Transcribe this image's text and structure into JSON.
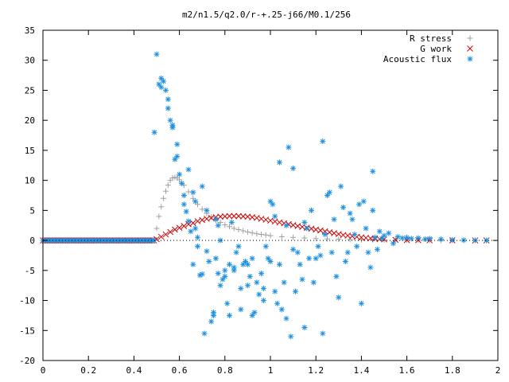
{
  "chart_data": {
    "type": "scatter",
    "title": "m2/n1.5/q2.0/r-+.25-j66/M0.1/256",
    "xlabel": "",
    "ylabel": "",
    "xlim": [
      0,
      2
    ],
    "ylim": [
      -20,
      35
    ],
    "xticks": [
      0,
      0.2,
      0.4,
      0.6,
      0.8,
      1,
      1.2,
      1.4,
      1.6,
      1.8,
      2
    ],
    "xtick_labels": [
      "0",
      "0.2",
      "0.4",
      "0.6",
      "0.8",
      "1",
      "1.2",
      "1.4",
      "1.6",
      "1.8",
      "2"
    ],
    "yticks": [
      -20,
      -15,
      -10,
      -5,
      0,
      5,
      10,
      15,
      20,
      25,
      30,
      35
    ],
    "ytick_labels": [
      "-20",
      "-15",
      "-10",
      "-5",
      "0",
      "5",
      "10",
      "15",
      "20",
      "25",
      "30",
      "35"
    ],
    "grid": false,
    "legend_position": "top-right",
    "series": [
      {
        "name": "R stress",
        "marker": "plus",
        "color": "#a0a0a0",
        "points": [
          [
            0.5,
            2.0
          ],
          [
            0.51,
            4.0
          ],
          [
            0.52,
            5.6
          ],
          [
            0.53,
            7.0
          ],
          [
            0.54,
            8.2
          ],
          [
            0.55,
            9.2
          ],
          [
            0.56,
            10.0
          ],
          [
            0.57,
            10.4
          ],
          [
            0.58,
            10.5
          ],
          [
            0.59,
            10.4
          ],
          [
            0.6,
            10.1
          ],
          [
            0.62,
            9.2
          ],
          [
            0.64,
            8.1
          ],
          [
            0.66,
            7.0
          ],
          [
            0.68,
            6.0
          ],
          [
            0.7,
            5.2
          ],
          [
            0.72,
            4.5
          ],
          [
            0.74,
            3.9
          ],
          [
            0.76,
            3.4
          ],
          [
            0.78,
            3.0
          ],
          [
            0.8,
            2.6
          ],
          [
            0.82,
            2.3
          ],
          [
            0.84,
            2.0
          ],
          [
            0.86,
            1.8
          ],
          [
            0.88,
            1.6
          ],
          [
            0.9,
            1.4
          ],
          [
            0.92,
            1.25
          ],
          [
            0.94,
            1.1
          ],
          [
            0.96,
            1.0
          ],
          [
            0.98,
            0.9
          ],
          [
            1.0,
            0.8
          ],
          [
            1.05,
            0.62
          ],
          [
            1.1,
            0.5
          ],
          [
            1.15,
            0.4
          ],
          [
            1.2,
            0.32
          ],
          [
            1.25,
            0.26
          ],
          [
            1.3,
            0.2
          ],
          [
            1.35,
            0.16
          ],
          [
            1.4,
            0.12
          ],
          [
            1.45,
            0.1
          ],
          [
            1.5,
            0.08
          ],
          [
            1.55,
            0.06
          ],
          [
            1.6,
            0.05
          ],
          [
            1.65,
            0.04
          ],
          [
            1.7,
            0.03
          ],
          [
            1.75,
            0.02
          ],
          [
            1.8,
            0.02
          ],
          [
            1.85,
            0.01
          ],
          [
            1.9,
            0.01
          ],
          [
            1.95,
            0.0
          ]
        ]
      },
      {
        "name": "G work",
        "marker": "cross",
        "color": "#cc0000",
        "points": [
          [
            0.5,
            0.2
          ],
          [
            0.52,
            0.6
          ],
          [
            0.54,
            1.0
          ],
          [
            0.56,
            1.4
          ],
          [
            0.58,
            1.8
          ],
          [
            0.6,
            2.1
          ],
          [
            0.62,
            2.4
          ],
          [
            0.64,
            2.7
          ],
          [
            0.66,
            2.9
          ],
          [
            0.68,
            3.2
          ],
          [
            0.7,
            3.4
          ],
          [
            0.72,
            3.6
          ],
          [
            0.74,
            3.75
          ],
          [
            0.76,
            3.85
          ],
          [
            0.78,
            3.95
          ],
          [
            0.8,
            4.0
          ],
          [
            0.82,
            4.05
          ],
          [
            0.84,
            4.05
          ],
          [
            0.86,
            4.05
          ],
          [
            0.88,
            4.0
          ],
          [
            0.9,
            3.95
          ],
          [
            0.92,
            3.85
          ],
          [
            0.94,
            3.75
          ],
          [
            0.96,
            3.6
          ],
          [
            0.98,
            3.45
          ],
          [
            1.0,
            3.3
          ],
          [
            1.02,
            3.15
          ],
          [
            1.04,
            3.0
          ],
          [
            1.06,
            2.85
          ],
          [
            1.08,
            2.7
          ],
          [
            1.1,
            2.55
          ],
          [
            1.12,
            2.4
          ],
          [
            1.14,
            2.25
          ],
          [
            1.16,
            2.1
          ],
          [
            1.18,
            1.95
          ],
          [
            1.2,
            1.8
          ],
          [
            1.22,
            1.65
          ],
          [
            1.24,
            1.5
          ],
          [
            1.26,
            1.35
          ],
          [
            1.28,
            1.2
          ],
          [
            1.3,
            1.05
          ],
          [
            1.32,
            0.9
          ],
          [
            1.34,
            0.8
          ],
          [
            1.36,
            0.7
          ],
          [
            1.38,
            0.6
          ],
          [
            1.4,
            0.5
          ],
          [
            1.42,
            0.42
          ],
          [
            1.44,
            0.35
          ],
          [
            1.46,
            0.28
          ],
          [
            1.48,
            0.22
          ],
          [
            1.5,
            0.17
          ],
          [
            1.55,
            0.1
          ],
          [
            1.6,
            0.06
          ],
          [
            1.65,
            0.04
          ],
          [
            1.7,
            0.02
          ],
          [
            1.8,
            0.01
          ],
          [
            1.9,
            0.0
          ],
          [
            1.95,
            0.0
          ]
        ]
      },
      {
        "name": "Acoustic flux",
        "marker": "star",
        "color": "#1e90e0",
        "points": [
          [
            0.49,
            18.0
          ],
          [
            0.5,
            31.0
          ],
          [
            0.51,
            26.0
          ],
          [
            0.52,
            25.5
          ],
          [
            0.52,
            27.0
          ],
          [
            0.53,
            26.5
          ],
          [
            0.54,
            25.0
          ],
          [
            0.55,
            23.5
          ],
          [
            0.55,
            22.0
          ],
          [
            0.56,
            20.0
          ],
          [
            0.57,
            18.8
          ],
          [
            0.57,
            19.2
          ],
          [
            0.58,
            13.5
          ],
          [
            0.59,
            14.0
          ],
          [
            0.59,
            16.0
          ],
          [
            0.6,
            11.0
          ],
          [
            0.61,
            9.5
          ],
          [
            0.62,
            7.5
          ],
          [
            0.62,
            6.0
          ],
          [
            0.63,
            4.8
          ],
          [
            0.64,
            11.8
          ],
          [
            0.64,
            3.2
          ],
          [
            0.65,
            1.5
          ],
          [
            0.66,
            -4.0
          ],
          [
            0.66,
            8.0
          ],
          [
            0.67,
            6.5
          ],
          [
            0.67,
            2.0
          ],
          [
            0.68,
            0.5
          ],
          [
            0.68,
            -1.0
          ],
          [
            0.69,
            -5.8
          ],
          [
            0.7,
            -5.6
          ],
          [
            0.7,
            9.0
          ],
          [
            0.71,
            -15.5
          ],
          [
            0.72,
            -1.8
          ],
          [
            0.72,
            5.0
          ],
          [
            0.73,
            -3.5
          ],
          [
            0.74,
            -13.5
          ],
          [
            0.75,
            -12.5
          ],
          [
            0.75,
            -12.0
          ],
          [
            0.76,
            3.5
          ],
          [
            0.76,
            -3.0
          ],
          [
            0.77,
            2.5
          ],
          [
            0.77,
            -5.5
          ],
          [
            0.78,
            -7.5
          ],
          [
            0.78,
            0.0
          ],
          [
            0.79,
            -6.5
          ],
          [
            0.8,
            -5.0
          ],
          [
            0.8,
            -6.0
          ],
          [
            0.81,
            -10.5
          ],
          [
            0.82,
            -4.0
          ],
          [
            0.82,
            -12.5
          ],
          [
            0.83,
            3.0
          ],
          [
            0.84,
            -4.5
          ],
          [
            0.84,
            -5.0
          ],
          [
            0.85,
            -2.0
          ],
          [
            0.86,
            -1.0
          ],
          [
            0.87,
            -8.0
          ],
          [
            0.87,
            -11.5
          ],
          [
            0.88,
            -4.0
          ],
          [
            0.89,
            -3.5
          ],
          [
            0.9,
            -4.0
          ],
          [
            0.9,
            -7.5
          ],
          [
            0.91,
            -6.0
          ],
          [
            0.92,
            -12.5
          ],
          [
            0.92,
            -3.0
          ],
          [
            0.93,
            -12.0
          ],
          [
            0.94,
            -7.0
          ],
          [
            0.95,
            -9.0
          ],
          [
            0.96,
            -5.5
          ],
          [
            0.97,
            -10.0
          ],
          [
            0.97,
            -8.0
          ],
          [
            0.98,
            -1.0
          ],
          [
            0.99,
            -3.0
          ],
          [
            1.0,
            6.5
          ],
          [
            1.0,
            -3.5
          ],
          [
            1.01,
            6.0
          ],
          [
            1.02,
            4.0
          ],
          [
            1.02,
            -8.5
          ],
          [
            1.03,
            -10.5
          ],
          [
            1.04,
            13.0
          ],
          [
            1.04,
            -4.0
          ],
          [
            1.05,
            -11.5
          ],
          [
            1.06,
            -7.0
          ],
          [
            1.07,
            -13.0
          ],
          [
            1.07,
            2.5
          ],
          [
            1.08,
            15.5
          ],
          [
            1.09,
            -16.0
          ],
          [
            1.1,
            12.0
          ],
          [
            1.1,
            -1.5
          ],
          [
            1.11,
            -8.5
          ],
          [
            1.12,
            -2.0
          ],
          [
            1.13,
            -4.0
          ],
          [
            1.14,
            -6.5
          ],
          [
            1.15,
            -14.5
          ],
          [
            1.15,
            3.0
          ],
          [
            1.16,
            2.0
          ],
          [
            1.17,
            -3.0
          ],
          [
            1.18,
            5.0
          ],
          [
            1.19,
            -7.0
          ],
          [
            1.2,
            -3.0
          ],
          [
            1.21,
            -1.0
          ],
          [
            1.22,
            -2.5
          ],
          [
            1.23,
            -15.5
          ],
          [
            1.23,
            16.5
          ],
          [
            1.24,
            1.0
          ],
          [
            1.25,
            7.5
          ],
          [
            1.26,
            8.0
          ],
          [
            1.27,
            -2.0
          ],
          [
            1.28,
            3.5
          ],
          [
            1.29,
            -6.0
          ],
          [
            1.3,
            -9.5
          ],
          [
            1.31,
            9.0
          ],
          [
            1.32,
            5.5
          ],
          [
            1.33,
            -3.5
          ],
          [
            1.34,
            -2.0
          ],
          [
            1.35,
            4.5
          ],
          [
            1.36,
            3.5
          ],
          [
            1.37,
            1.0
          ],
          [
            1.38,
            -1.0
          ],
          [
            1.39,
            6.0
          ],
          [
            1.4,
            -10.5
          ],
          [
            1.41,
            6.5
          ],
          [
            1.42,
            2.0
          ],
          [
            1.43,
            -2.0
          ],
          [
            1.44,
            -4.5
          ],
          [
            1.45,
            5.0
          ],
          [
            1.45,
            11.5
          ],
          [
            1.46,
            0.5
          ],
          [
            1.47,
            -1.5
          ],
          [
            1.48,
            1.5
          ],
          [
            1.49,
            0.3
          ],
          [
            1.5,
            0.8
          ],
          [
            1.52,
            1.2
          ],
          [
            1.54,
            -0.5
          ],
          [
            1.56,
            0.6
          ],
          [
            1.58,
            0.4
          ],
          [
            1.6,
            0.5
          ],
          [
            1.62,
            0.3
          ],
          [
            1.65,
            0.4
          ],
          [
            1.68,
            0.2
          ],
          [
            1.7,
            0.3
          ],
          [
            1.75,
            0.2
          ],
          [
            1.8,
            0.1
          ],
          [
            1.85,
            0.05
          ],
          [
            1.9,
            0.02
          ],
          [
            1.95,
            0.0
          ]
        ]
      }
    ]
  }
}
